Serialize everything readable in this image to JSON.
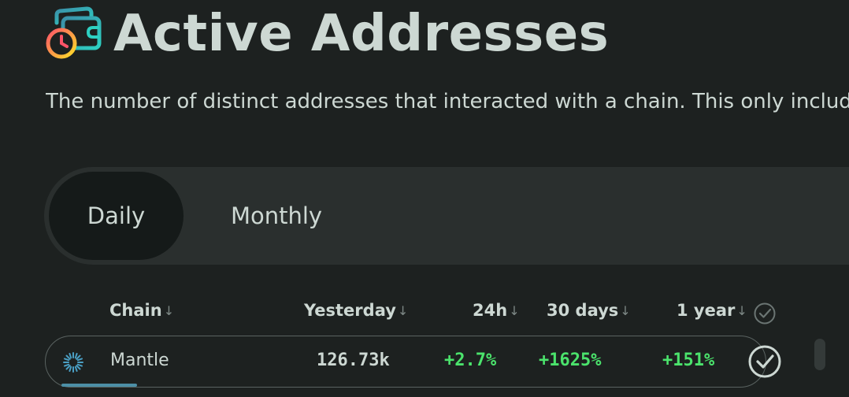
{
  "header": {
    "title": "Active Addresses",
    "icon": "wallet-clock-icon",
    "description": "The number of distinct addresses that interacted with a chain. This only includes"
  },
  "tabs": [
    {
      "label": "Daily",
      "active": true
    },
    {
      "label": "Monthly",
      "active": false
    }
  ],
  "table": {
    "columns": [
      {
        "label": "Chain",
        "sort_icon": "arrow-down-icon"
      },
      {
        "label": "Yesterday",
        "sort_icon": "arrow-down-icon"
      },
      {
        "label": "24h",
        "sort_icon": "arrow-down-icon"
      },
      {
        "label": "30 days",
        "sort_icon": "arrow-down-icon"
      },
      {
        "label": "1 year",
        "sort_icon": "arrow-down-icon"
      }
    ],
    "rows": [
      {
        "chain": "Mantle",
        "chain_icon": "mantle-icon",
        "yesterday": "126.73k",
        "change_24h": "+2.7%",
        "change_30d": "+1625%",
        "change_1y": "+151%",
        "selected": true
      }
    ]
  },
  "colors": {
    "background": "#1d2120",
    "text": "#cdd8d3",
    "positive": "#4be36c",
    "tab_bar": "#2a2f2e",
    "active_tab": "#151a19",
    "accent_bar": "#4c8fa6"
  }
}
